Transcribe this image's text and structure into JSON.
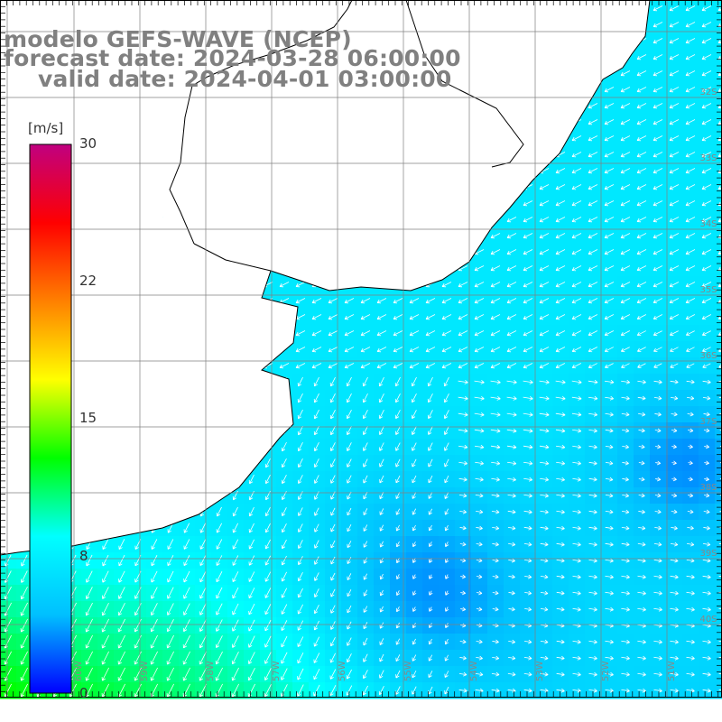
{
  "header": {
    "model": "modelo GEFS-WAVE (NCEP)",
    "forecast": "forecast date: 2024-03-28 06:00:00",
    "valid": "valid date: 2024-04-01 03:00:00"
  },
  "colorbar": {
    "unit": "[m/s]",
    "vmin": 0,
    "vmax": 30,
    "tick_labels": [
      "30",
      "22",
      "15",
      "8",
      "0"
    ],
    "tick_values": [
      30,
      22,
      15,
      8,
      0
    ],
    "colors": [
      "#0000ff",
      "#00c0ff",
      "#00ffff",
      "#00ff00",
      "#ffff00",
      "#ff8000",
      "#ff0000",
      "#c00080"
    ]
  },
  "map": {
    "variable": "wind speed",
    "lat_labels": [
      "32S",
      "33S",
      "34S",
      "35S",
      "36S",
      "37S",
      "38S",
      "39S",
      "40S"
    ],
    "lon_labels": [
      "60W",
      "59W",
      "58W",
      "57W",
      "56W",
      "55W",
      "54W",
      "53W",
      "52W",
      "51W"
    ],
    "land_color": "#ffffff",
    "grid_color": "#808080",
    "arrow_color": "#ffffff"
  }
}
